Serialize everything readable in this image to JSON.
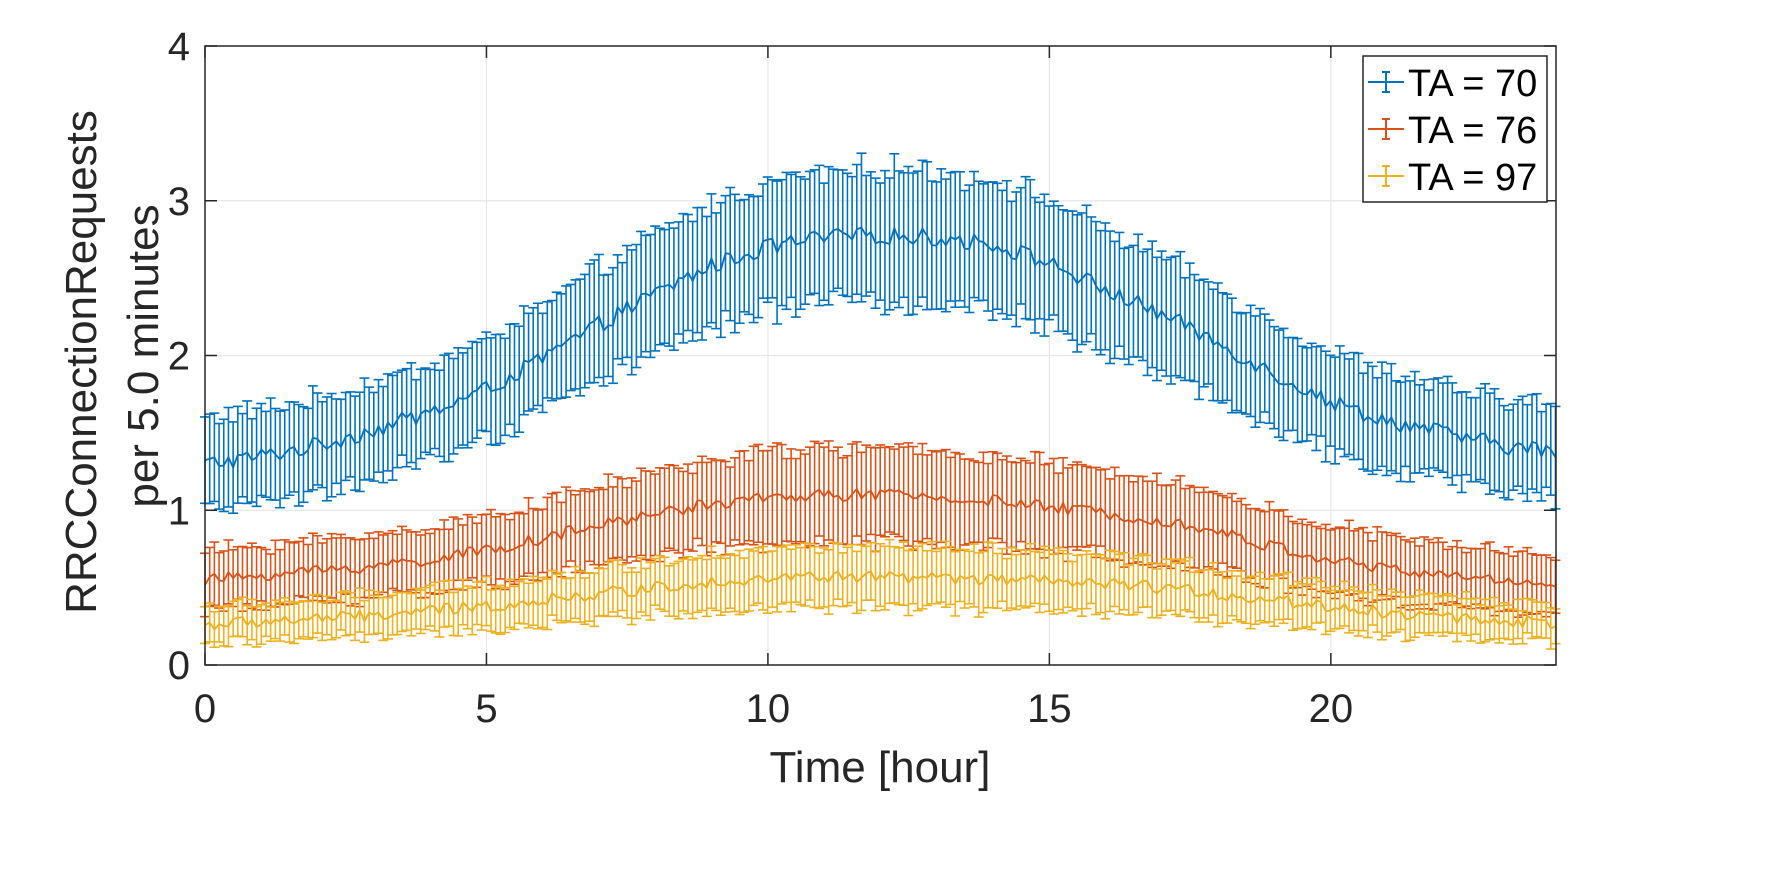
{
  "chart_data": {
    "type": "line",
    "subtype": "errorbar",
    "title": "",
    "xlabel": "Time [hour]",
    "ylabel_line1": "RRCConnectionRequests",
    "ylabel_line2": "per 5.0 minutes",
    "xlim": [
      0,
      24
    ],
    "ylim": [
      0,
      4
    ],
    "xticks": [
      0,
      5,
      10,
      15,
      20
    ],
    "yticks": [
      0,
      1,
      2,
      3,
      4
    ],
    "grid": true,
    "legend_position": "top-right",
    "sampling": {
      "start_hour": 0,
      "step_hours": 0.0833
    },
    "series": [
      {
        "name": "TA = 70",
        "color": "#0072BD",
        "anchor_hours": [
          0,
          1,
          2,
          3,
          4,
          5,
          6,
          7,
          8,
          9,
          10,
          11,
          12,
          13,
          14,
          15,
          16,
          17,
          18,
          19,
          20,
          21,
          22,
          23,
          24
        ],
        "anchor_means": [
          1.3,
          1.35,
          1.42,
          1.52,
          1.63,
          1.78,
          1.98,
          2.2,
          2.4,
          2.58,
          2.7,
          2.76,
          2.78,
          2.76,
          2.72,
          2.6,
          2.42,
          2.27,
          2.08,
          1.88,
          1.7,
          1.58,
          1.5,
          1.42,
          1.38
        ],
        "anchor_halfwidths": [
          0.3,
          0.3,
          0.3,
          0.3,
          0.31,
          0.32,
          0.34,
          0.36,
          0.38,
          0.4,
          0.42,
          0.43,
          0.43,
          0.43,
          0.42,
          0.41,
          0.39,
          0.37,
          0.35,
          0.33,
          0.32,
          0.31,
          0.3,
          0.3,
          0.3
        ]
      },
      {
        "name": "TA = 76",
        "color": "#D95319",
        "anchor_hours": [
          0,
          1,
          2,
          3,
          4,
          5,
          6,
          7,
          8,
          9,
          10,
          11,
          12,
          13,
          14,
          15,
          16,
          17,
          18,
          19,
          20,
          21,
          22,
          23,
          24
        ],
        "anchor_means": [
          0.55,
          0.58,
          0.61,
          0.64,
          0.68,
          0.74,
          0.82,
          0.9,
          0.98,
          1.04,
          1.08,
          1.1,
          1.1,
          1.08,
          1.06,
          1.02,
          0.98,
          0.94,
          0.86,
          0.76,
          0.68,
          0.62,
          0.58,
          0.55,
          0.53
        ],
        "anchor_halfwidths": [
          0.19,
          0.19,
          0.2,
          0.2,
          0.21,
          0.22,
          0.23,
          0.25,
          0.27,
          0.28,
          0.3,
          0.3,
          0.3,
          0.3,
          0.29,
          0.28,
          0.27,
          0.26,
          0.24,
          0.23,
          0.22,
          0.21,
          0.2,
          0.19,
          0.19
        ]
      },
      {
        "name": "TA = 97",
        "color": "#EDB120",
        "anchor_hours": [
          0,
          1,
          2,
          3,
          4,
          5,
          6,
          7,
          8,
          9,
          10,
          11,
          12,
          13,
          14,
          15,
          16,
          17,
          18,
          19,
          20,
          21,
          22,
          23,
          24
        ],
        "anchor_means": [
          0.26,
          0.28,
          0.3,
          0.32,
          0.35,
          0.38,
          0.42,
          0.46,
          0.5,
          0.54,
          0.56,
          0.57,
          0.57,
          0.56,
          0.55,
          0.54,
          0.52,
          0.5,
          0.46,
          0.42,
          0.38,
          0.34,
          0.31,
          0.29,
          0.27
        ],
        "anchor_halfwidths": [
          0.12,
          0.12,
          0.13,
          0.13,
          0.14,
          0.15,
          0.15,
          0.16,
          0.17,
          0.18,
          0.19,
          0.19,
          0.19,
          0.19,
          0.19,
          0.18,
          0.18,
          0.17,
          0.16,
          0.15,
          0.14,
          0.13,
          0.13,
          0.12,
          0.12
        ]
      }
    ]
  }
}
